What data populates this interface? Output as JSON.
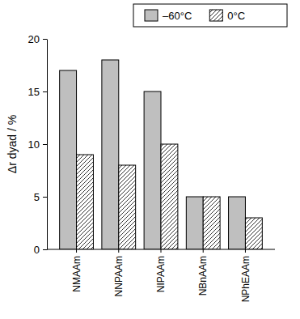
{
  "chart_data": {
    "type": "bar",
    "y_label": "Δr dyad / %",
    "categories": [
      "NMAAm",
      "NNPAAm",
      "NIPAAm",
      "NBnAAm",
      "NPhEAAm"
    ],
    "series": [
      {
        "name": "–60°C",
        "color": "#bfbfbf",
        "values": [
          17,
          18,
          15,
          5,
          5
        ]
      },
      {
        "name": "0°C",
        "color": "#ffffff",
        "values": [
          9,
          8,
          10,
          5,
          3
        ]
      }
    ],
    "ylim": [
      0,
      20
    ],
    "yticks": [
      0,
      5,
      10,
      15,
      20
    ],
    "grid": false,
    "legend": "top"
  }
}
